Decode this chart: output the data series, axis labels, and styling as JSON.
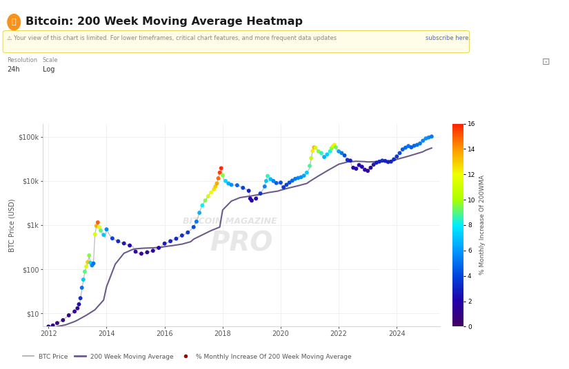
{
  "title": "Bitcoin: 200 Week Moving Average Heatmap",
  "ylabel": "BTC Price (USD)",
  "colorbar_label": "% Monthly Increase Of 200WMA",
  "colorbar_ticks": [
    0,
    2,
    4,
    6,
    8,
    10,
    12,
    14,
    16
  ],
  "yticks_log": [
    10,
    100,
    1000,
    10000,
    100000
  ],
  "ytick_labels": [
    "$10",
    "$100",
    "$1k",
    "$10k",
    "$100k"
  ],
  "xlim": [
    2011.8,
    2025.5
  ],
  "ylim_log": [
    5,
    200000
  ],
  "background_color": "#ffffff",
  "plot_bg_color": "#ffffff",
  "grid_color": "#eeeeee",
  "ma_color": "#6b5b8b",
  "price_line_color": "#b0b0b0",
  "btc_price_data": [
    [
      2012.0,
      5
    ],
    [
      2012.1,
      5.2
    ],
    [
      2012.2,
      5.5
    ],
    [
      2012.3,
      6
    ],
    [
      2012.4,
      6.5
    ],
    [
      2012.5,
      7
    ],
    [
      2012.6,
      8
    ],
    [
      2012.7,
      9
    ],
    [
      2012.8,
      10
    ],
    [
      2012.9,
      11
    ],
    [
      2013.0,
      13
    ],
    [
      2013.05,
      15
    ],
    [
      2013.1,
      20
    ],
    [
      2013.15,
      35
    ],
    [
      2013.2,
      55
    ],
    [
      2013.25,
      85
    ],
    [
      2013.3,
      110
    ],
    [
      2013.35,
      140
    ],
    [
      2013.4,
      200
    ],
    [
      2013.45,
      140
    ],
    [
      2013.5,
      120
    ],
    [
      2013.55,
      140
    ],
    [
      2013.6,
      600
    ],
    [
      2013.65,
      950
    ],
    [
      2013.7,
      1150
    ],
    [
      2013.75,
      900
    ],
    [
      2013.8,
      750
    ],
    [
      2013.85,
      650
    ],
    [
      2013.9,
      580
    ],
    [
      2013.95,
      520
    ],
    [
      2014.0,
      800
    ],
    [
      2014.1,
      600
    ],
    [
      2014.2,
      500
    ],
    [
      2014.3,
      460
    ],
    [
      2014.4,
      430
    ],
    [
      2014.5,
      400
    ],
    [
      2014.6,
      380
    ],
    [
      2014.7,
      360
    ],
    [
      2014.8,
      340
    ],
    [
      2014.9,
      330
    ],
    [
      2015.0,
      250
    ],
    [
      2015.1,
      230
    ],
    [
      2015.2,
      220
    ],
    [
      2015.3,
      230
    ],
    [
      2015.4,
      240
    ],
    [
      2015.5,
      250
    ],
    [
      2015.6,
      260
    ],
    [
      2015.7,
      280
    ],
    [
      2015.8,
      300
    ],
    [
      2015.9,
      340
    ],
    [
      2016.0,
      380
    ],
    [
      2016.1,
      400
    ],
    [
      2016.2,
      430
    ],
    [
      2016.3,
      460
    ],
    [
      2016.4,
      490
    ],
    [
      2016.5,
      540
    ],
    [
      2016.6,
      580
    ],
    [
      2016.7,
      620
    ],
    [
      2016.8,
      680
    ],
    [
      2016.9,
      780
    ],
    [
      2017.0,
      900
    ],
    [
      2017.05,
      1050
    ],
    [
      2017.1,
      1200
    ],
    [
      2017.15,
      1500
    ],
    [
      2017.2,
      1900
    ],
    [
      2017.25,
      2400
    ],
    [
      2017.3,
      2800
    ],
    [
      2017.35,
      3200
    ],
    [
      2017.4,
      3600
    ],
    [
      2017.45,
      4000
    ],
    [
      2017.5,
      4500
    ],
    [
      2017.55,
      5000
    ],
    [
      2017.6,
      5500
    ],
    [
      2017.65,
      6000
    ],
    [
      2017.7,
      6500
    ],
    [
      2017.75,
      7500
    ],
    [
      2017.8,
      8500
    ],
    [
      2017.85,
      11000
    ],
    [
      2017.9,
      15000
    ],
    [
      2017.95,
      19000
    ],
    [
      2018.0,
      13500
    ],
    [
      2018.05,
      10500
    ],
    [
      2018.1,
      10000
    ],
    [
      2018.15,
      9200
    ],
    [
      2018.2,
      8800
    ],
    [
      2018.3,
      8200
    ],
    [
      2018.4,
      8000
    ],
    [
      2018.5,
      8500
    ],
    [
      2018.6,
      7500
    ],
    [
      2018.7,
      7000
    ],
    [
      2018.8,
      6500
    ],
    [
      2018.9,
      6000
    ],
    [
      2018.95,
      4000
    ],
    [
      2019.0,
      3600
    ],
    [
      2019.05,
      3800
    ],
    [
      2019.1,
      4000
    ],
    [
      2019.2,
      4500
    ],
    [
      2019.3,
      5200
    ],
    [
      2019.4,
      6500
    ],
    [
      2019.45,
      8000
    ],
    [
      2019.5,
      10000
    ],
    [
      2019.55,
      13000
    ],
    [
      2019.6,
      12000
    ],
    [
      2019.65,
      11000
    ],
    [
      2019.7,
      10000
    ],
    [
      2019.75,
      9500
    ],
    [
      2019.8,
      9000
    ],
    [
      2019.9,
      8500
    ],
    [
      2020.0,
      9000
    ],
    [
      2020.05,
      7500
    ],
    [
      2020.1,
      7000
    ],
    [
      2020.15,
      8000
    ],
    [
      2020.2,
      8500
    ],
    [
      2020.3,
      9200
    ],
    [
      2020.4,
      10000
    ],
    [
      2020.5,
      11000
    ],
    [
      2020.6,
      11500
    ],
    [
      2020.7,
      12000
    ],
    [
      2020.8,
      13000
    ],
    [
      2020.9,
      15000
    ],
    [
      2021.0,
      20000
    ],
    [
      2021.05,
      32000
    ],
    [
      2021.1,
      48000
    ],
    [
      2021.15,
      58000
    ],
    [
      2021.2,
      57000
    ],
    [
      2021.25,
      52000
    ],
    [
      2021.3,
      47000
    ],
    [
      2021.35,
      45000
    ],
    [
      2021.4,
      43000
    ],
    [
      2021.5,
      35000
    ],
    [
      2021.55,
      38000
    ],
    [
      2021.6,
      40000
    ],
    [
      2021.65,
      44000
    ],
    [
      2021.7,
      47000
    ],
    [
      2021.75,
      55000
    ],
    [
      2021.8,
      61000
    ],
    [
      2021.85,
      66000
    ],
    [
      2021.9,
      58000
    ],
    [
      2021.95,
      50000
    ],
    [
      2022.0,
      47000
    ],
    [
      2022.1,
      43000
    ],
    [
      2022.2,
      38000
    ],
    [
      2022.3,
      30000
    ],
    [
      2022.4,
      29000
    ],
    [
      2022.45,
      22000
    ],
    [
      2022.5,
      20000
    ],
    [
      2022.6,
      19000
    ],
    [
      2022.7,
      23000
    ],
    [
      2022.8,
      21000
    ],
    [
      2022.9,
      18000
    ],
    [
      2023.0,
      17000
    ],
    [
      2023.1,
      20000
    ],
    [
      2023.2,
      23500
    ],
    [
      2023.3,
      26000
    ],
    [
      2023.4,
      27500
    ],
    [
      2023.5,
      29000
    ],
    [
      2023.6,
      28500
    ],
    [
      2023.7,
      27000
    ],
    [
      2023.8,
      27500
    ],
    [
      2023.9,
      31000
    ],
    [
      2024.0,
      36000
    ],
    [
      2024.1,
      43000
    ],
    [
      2024.2,
      52000
    ],
    [
      2024.3,
      57000
    ],
    [
      2024.4,
      62000
    ],
    [
      2024.5,
      58000
    ],
    [
      2024.6,
      63000
    ],
    [
      2024.7,
      66000
    ],
    [
      2024.8,
      71000
    ],
    [
      2024.9,
      82000
    ],
    [
      2025.0,
      92000
    ],
    [
      2025.1,
      97000
    ],
    [
      2025.2,
      102000
    ]
  ],
  "ma200w_data": [
    [
      2012.0,
      4.5
    ],
    [
      2012.3,
      5
    ],
    [
      2012.6,
      5.5
    ],
    [
      2012.9,
      6.5
    ],
    [
      2013.0,
      7
    ],
    [
      2013.3,
      9
    ],
    [
      2013.6,
      12
    ],
    [
      2013.9,
      20
    ],
    [
      2014.0,
      40
    ],
    [
      2014.3,
      130
    ],
    [
      2014.6,
      230
    ],
    [
      2014.9,
      280
    ],
    [
      2015.0,
      290
    ],
    [
      2015.3,
      300
    ],
    [
      2015.6,
      305
    ],
    [
      2015.9,
      315
    ],
    [
      2016.0,
      325
    ],
    [
      2016.3,
      345
    ],
    [
      2016.6,
      370
    ],
    [
      2016.9,
      420
    ],
    [
      2017.0,
      480
    ],
    [
      2017.3,
      600
    ],
    [
      2017.6,
      750
    ],
    [
      2017.9,
      900
    ],
    [
      2018.0,
      2200
    ],
    [
      2018.3,
      3500
    ],
    [
      2018.6,
      4200
    ],
    [
      2018.9,
      4500
    ],
    [
      2019.0,
      4600
    ],
    [
      2019.3,
      5000
    ],
    [
      2019.6,
      5500
    ],
    [
      2019.9,
      5900
    ],
    [
      2020.0,
      6200
    ],
    [
      2020.3,
      7000
    ],
    [
      2020.6,
      7800
    ],
    [
      2020.9,
      8800
    ],
    [
      2021.0,
      9800
    ],
    [
      2021.3,
      13000
    ],
    [
      2021.6,
      17000
    ],
    [
      2021.9,
      22000
    ],
    [
      2022.0,
      24000
    ],
    [
      2022.3,
      27000
    ],
    [
      2022.6,
      28000
    ],
    [
      2022.9,
      27500
    ],
    [
      2023.0,
      27000
    ],
    [
      2023.3,
      27500
    ],
    [
      2023.6,
      28000
    ],
    [
      2023.9,
      29000
    ],
    [
      2024.0,
      31000
    ],
    [
      2024.3,
      35000
    ],
    [
      2024.6,
      40000
    ],
    [
      2024.9,
      46000
    ],
    [
      2025.0,
      50000
    ],
    [
      2025.2,
      56000
    ]
  ],
  "scatter_points": [
    {
      "year": 2012.0,
      "price": 5,
      "pct": 1.5
    },
    {
      "year": 2012.15,
      "price": 5.3,
      "pct": 1.2
    },
    {
      "year": 2012.3,
      "price": 6,
      "pct": 1.0
    },
    {
      "year": 2012.5,
      "price": 7,
      "pct": 0.9
    },
    {
      "year": 2012.7,
      "price": 9,
      "pct": 1.0
    },
    {
      "year": 2012.9,
      "price": 11,
      "pct": 1.1
    },
    {
      "year": 2013.0,
      "price": 13,
      "pct": 1.5
    },
    {
      "year": 2013.05,
      "price": 16,
      "pct": 2.2
    },
    {
      "year": 2013.1,
      "price": 22,
      "pct": 3.2
    },
    {
      "year": 2013.15,
      "price": 38,
      "pct": 5.0
    },
    {
      "year": 2013.2,
      "price": 58,
      "pct": 7.0
    },
    {
      "year": 2013.25,
      "price": 88,
      "pct": 9.0
    },
    {
      "year": 2013.3,
      "price": 115,
      "pct": 11.5
    },
    {
      "year": 2013.35,
      "price": 145,
      "pct": 13.0
    },
    {
      "year": 2013.4,
      "price": 205,
      "pct": 9.5
    },
    {
      "year": 2013.45,
      "price": 140,
      "pct": 7.5
    },
    {
      "year": 2013.5,
      "price": 122,
      "pct": 5.5
    },
    {
      "year": 2013.55,
      "price": 135,
      "pct": 5.0
    },
    {
      "year": 2013.6,
      "price": 620,
      "pct": 11.5
    },
    {
      "year": 2013.65,
      "price": 960,
      "pct": 13.5
    },
    {
      "year": 2013.7,
      "price": 1150,
      "pct": 15.0
    },
    {
      "year": 2013.75,
      "price": 900,
      "pct": 11.5
    },
    {
      "year": 2013.8,
      "price": 750,
      "pct": 9.0
    },
    {
      "year": 2013.9,
      "price": 600,
      "pct": 7.0
    },
    {
      "year": 2014.0,
      "price": 800,
      "pct": 5.5
    },
    {
      "year": 2014.2,
      "price": 500,
      "pct": 3.8
    },
    {
      "year": 2014.4,
      "price": 430,
      "pct": 3.0
    },
    {
      "year": 2014.6,
      "price": 385,
      "pct": 2.5
    },
    {
      "year": 2014.8,
      "price": 345,
      "pct": 2.0
    },
    {
      "year": 2015.0,
      "price": 250,
      "pct": 1.5
    },
    {
      "year": 2015.2,
      "price": 225,
      "pct": 1.2
    },
    {
      "year": 2015.4,
      "price": 242,
      "pct": 1.3
    },
    {
      "year": 2015.6,
      "price": 262,
      "pct": 1.5
    },
    {
      "year": 2015.8,
      "price": 305,
      "pct": 2.0
    },
    {
      "year": 2016.0,
      "price": 382,
      "pct": 2.5
    },
    {
      "year": 2016.2,
      "price": 432,
      "pct": 2.8
    },
    {
      "year": 2016.4,
      "price": 492,
      "pct": 3.0
    },
    {
      "year": 2016.6,
      "price": 582,
      "pct": 3.2
    },
    {
      "year": 2016.8,
      "price": 682,
      "pct": 3.5
    },
    {
      "year": 2017.0,
      "price": 902,
      "pct": 4.0
    },
    {
      "year": 2017.1,
      "price": 1200,
      "pct": 5.2
    },
    {
      "year": 2017.2,
      "price": 1900,
      "pct": 6.5
    },
    {
      "year": 2017.3,
      "price": 2800,
      "pct": 8.0
    },
    {
      "year": 2017.4,
      "price": 3600,
      "pct": 9.5
    },
    {
      "year": 2017.5,
      "price": 4500,
      "pct": 11.0
    },
    {
      "year": 2017.6,
      "price": 5500,
      "pct": 12.0
    },
    {
      "year": 2017.7,
      "price": 6500,
      "pct": 12.5
    },
    {
      "year": 2017.75,
      "price": 7500,
      "pct": 13.0
    },
    {
      "year": 2017.8,
      "price": 8800,
      "pct": 13.8
    },
    {
      "year": 2017.85,
      "price": 11500,
      "pct": 14.8
    },
    {
      "year": 2017.9,
      "price": 15500,
      "pct": 15.5
    },
    {
      "year": 2017.95,
      "price": 19500,
      "pct": 16.0
    },
    {
      "year": 2018.0,
      "price": 13500,
      "pct": 9.5
    },
    {
      "year": 2018.1,
      "price": 10000,
      "pct": 7.5
    },
    {
      "year": 2018.2,
      "price": 8800,
      "pct": 6.5
    },
    {
      "year": 2018.3,
      "price": 8200,
      "pct": 5.8
    },
    {
      "year": 2018.5,
      "price": 8000,
      "pct": 4.8
    },
    {
      "year": 2018.7,
      "price": 7000,
      "pct": 3.8
    },
    {
      "year": 2018.9,
      "price": 6000,
      "pct": 2.8
    },
    {
      "year": 2018.95,
      "price": 4000,
      "pct": 2.0
    },
    {
      "year": 2019.0,
      "price": 3600,
      "pct": 1.8
    },
    {
      "year": 2019.15,
      "price": 4000,
      "pct": 2.0
    },
    {
      "year": 2019.3,
      "price": 5200,
      "pct": 3.5
    },
    {
      "year": 2019.45,
      "price": 7500,
      "pct": 5.5
    },
    {
      "year": 2019.5,
      "price": 10000,
      "pct": 7.0
    },
    {
      "year": 2019.55,
      "price": 13000,
      "pct": 8.5
    },
    {
      "year": 2019.65,
      "price": 11000,
      "pct": 6.8
    },
    {
      "year": 2019.75,
      "price": 10000,
      "pct": 5.5
    },
    {
      "year": 2019.85,
      "price": 9000,
      "pct": 4.5
    },
    {
      "year": 2020.0,
      "price": 9200,
      "pct": 4.2
    },
    {
      "year": 2020.1,
      "price": 7200,
      "pct": 3.5
    },
    {
      "year": 2020.2,
      "price": 8200,
      "pct": 3.8
    },
    {
      "year": 2020.3,
      "price": 9200,
      "pct": 4.2
    },
    {
      "year": 2020.4,
      "price": 10200,
      "pct": 4.8
    },
    {
      "year": 2020.5,
      "price": 11200,
      "pct": 5.2
    },
    {
      "year": 2020.6,
      "price": 11700,
      "pct": 5.5
    },
    {
      "year": 2020.7,
      "price": 12200,
      "pct": 5.8
    },
    {
      "year": 2020.8,
      "price": 13200,
      "pct": 6.2
    },
    {
      "year": 2020.9,
      "price": 15500,
      "pct": 7.2
    },
    {
      "year": 2021.0,
      "price": 22000,
      "pct": 8.8
    },
    {
      "year": 2021.05,
      "price": 33000,
      "pct": 10.5
    },
    {
      "year": 2021.1,
      "price": 48000,
      "pct": 12.2
    },
    {
      "year": 2021.15,
      "price": 58000,
      "pct": 13.5
    },
    {
      "year": 2021.2,
      "price": 57000,
      "pct": 11.2
    },
    {
      "year": 2021.3,
      "price": 47000,
      "pct": 9.5
    },
    {
      "year": 2021.4,
      "price": 43000,
      "pct": 8.5
    },
    {
      "year": 2021.5,
      "price": 35000,
      "pct": 6.5
    },
    {
      "year": 2021.6,
      "price": 40000,
      "pct": 7.2
    },
    {
      "year": 2021.7,
      "price": 47000,
      "pct": 8.2
    },
    {
      "year": 2021.75,
      "price": 55000,
      "pct": 9.5
    },
    {
      "year": 2021.8,
      "price": 61000,
      "pct": 11.0
    },
    {
      "year": 2021.85,
      "price": 66000,
      "pct": 12.2
    },
    {
      "year": 2021.9,
      "price": 58000,
      "pct": 9.2
    },
    {
      "year": 2022.0,
      "price": 47000,
      "pct": 6.2
    },
    {
      "year": 2022.1,
      "price": 43000,
      "pct": 5.2
    },
    {
      "year": 2022.2,
      "price": 38000,
      "pct": 4.2
    },
    {
      "year": 2022.3,
      "price": 30000,
      "pct": 3.2
    },
    {
      "year": 2022.4,
      "price": 29000,
      "pct": 2.8
    },
    {
      "year": 2022.5,
      "price": 20000,
      "pct": 2.0
    },
    {
      "year": 2022.6,
      "price": 19000,
      "pct": 1.8
    },
    {
      "year": 2022.7,
      "price": 23000,
      "pct": 2.2
    },
    {
      "year": 2022.8,
      "price": 21000,
      "pct": 2.0
    },
    {
      "year": 2022.9,
      "price": 18000,
      "pct": 1.5
    },
    {
      "year": 2023.0,
      "price": 17000,
      "pct": 1.6
    },
    {
      "year": 2023.1,
      "price": 20000,
      "pct": 2.0
    },
    {
      "year": 2023.2,
      "price": 23500,
      "pct": 2.5
    },
    {
      "year": 2023.3,
      "price": 26000,
      "pct": 2.8
    },
    {
      "year": 2023.4,
      "price": 27500,
      "pct": 3.0
    },
    {
      "year": 2023.5,
      "price": 29000,
      "pct": 3.2
    },
    {
      "year": 2023.6,
      "price": 28500,
      "pct": 3.0
    },
    {
      "year": 2023.7,
      "price": 27000,
      "pct": 2.8
    },
    {
      "year": 2023.8,
      "price": 27500,
      "pct": 2.9
    },
    {
      "year": 2023.9,
      "price": 31000,
      "pct": 3.2
    },
    {
      "year": 2024.0,
      "price": 36000,
      "pct": 3.5
    },
    {
      "year": 2024.1,
      "price": 43000,
      "pct": 4.0
    },
    {
      "year": 2024.2,
      "price": 52000,
      "pct": 4.5
    },
    {
      "year": 2024.3,
      "price": 57000,
      "pct": 4.8
    },
    {
      "year": 2024.4,
      "price": 62000,
      "pct": 5.0
    },
    {
      "year": 2024.5,
      "price": 58000,
      "pct": 4.5
    },
    {
      "year": 2024.6,
      "price": 63000,
      "pct": 4.8
    },
    {
      "year": 2024.7,
      "price": 66000,
      "pct": 5.0
    },
    {
      "year": 2024.8,
      "price": 71000,
      "pct": 5.2
    },
    {
      "year": 2024.9,
      "price": 82000,
      "pct": 5.5
    },
    {
      "year": 2025.0,
      "price": 92000,
      "pct": 5.8
    },
    {
      "year": 2025.1,
      "price": 97000,
      "pct": 5.5
    },
    {
      "year": 2025.2,
      "price": 102000,
      "pct": 5.2
    }
  ],
  "heatmap_colors": [
    "#420062",
    "#2200aa",
    "#0044dd",
    "#0099ff",
    "#00eeff",
    "#aaff00",
    "#eeff00",
    "#ff9900",
    "#ff2200"
  ],
  "legend_price_color": "#aaaaaa",
  "legend_ma_color": "#6b5b8b",
  "legend_dot_color": "#aa0000"
}
